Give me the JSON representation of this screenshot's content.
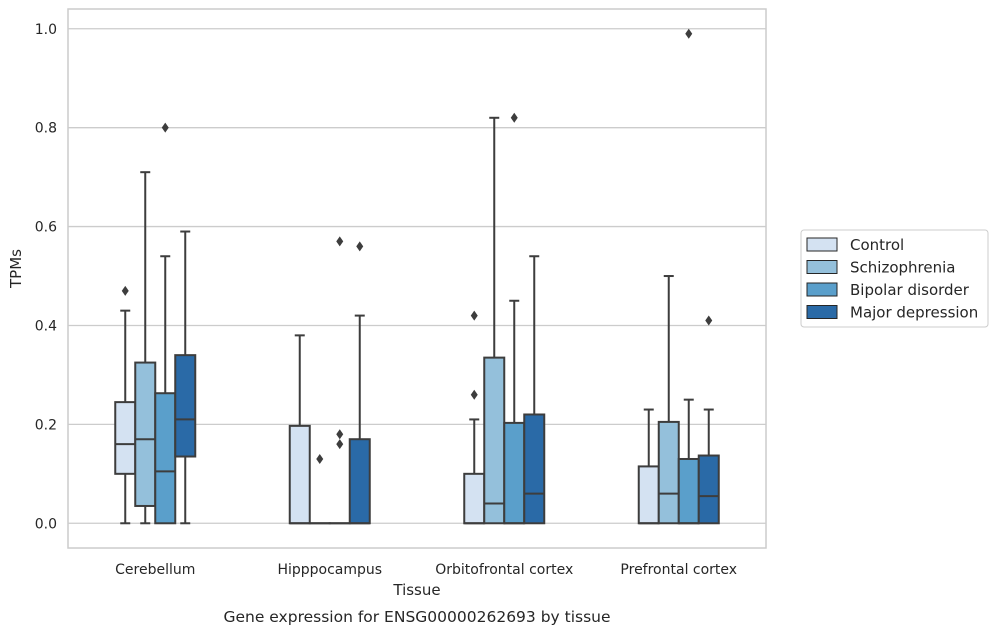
{
  "chart_data": {
    "type": "box",
    "xlabel": "Tissue",
    "ylabel": "TPMs",
    "caption": "Gene expression for ENSG00000262693 by tissue",
    "ylim": [
      -0.05,
      1.04
    ],
    "yticks": [
      0.0,
      0.2,
      0.4,
      0.6,
      0.8,
      1.0
    ],
    "ytick_labels": [
      "0.0",
      "0.2",
      "0.4",
      "0.6",
      "0.8",
      "1.0"
    ],
    "grid": "horizontal",
    "legend_position": "right",
    "categories": [
      "Cerebellum",
      "Hipppocampus",
      "Orbitofrontal cortex",
      "Prefrontal cortex"
    ],
    "series": [
      {
        "name": "Control",
        "color": "#d4e2f2",
        "boxes": [
          {
            "whisker_low": 0.0,
            "q1": 0.1,
            "median": 0.16,
            "q3": 0.245,
            "whisker_high": 0.43,
            "outliers": [
              0.47
            ]
          },
          {
            "whisker_low": 0.0,
            "q1": 0.0,
            "median": 0.0,
            "q3": 0.197,
            "whisker_high": 0.38,
            "outliers": []
          },
          {
            "whisker_low": 0.0,
            "q1": 0.0,
            "median": 0.0,
            "q3": 0.1,
            "whisker_high": 0.21,
            "outliers": [
              0.26,
              0.42
            ]
          },
          {
            "whisker_low": 0.0,
            "q1": 0.0,
            "median": 0.0,
            "q3": 0.115,
            "whisker_high": 0.23,
            "outliers": []
          }
        ]
      },
      {
        "name": "Schizophrenia",
        "color": "#94c0db",
        "boxes": [
          {
            "whisker_low": 0.0,
            "q1": 0.035,
            "median": 0.17,
            "q3": 0.325,
            "whisker_high": 0.71,
            "outliers": []
          },
          {
            "whisker_low": 0.0,
            "q1": 0.0,
            "median": 0.0,
            "q3": 0.0,
            "whisker_high": 0.0,
            "outliers": [
              0.13
            ]
          },
          {
            "whisker_low": 0.0,
            "q1": 0.0,
            "median": 0.04,
            "q3": 0.335,
            "whisker_high": 0.82,
            "outliers": []
          },
          {
            "whisker_low": 0.0,
            "q1": 0.0,
            "median": 0.06,
            "q3": 0.205,
            "whisker_high": 0.5,
            "outliers": []
          }
        ]
      },
      {
        "name": "Bipolar disorder",
        "color": "#5a9fcb",
        "boxes": [
          {
            "whisker_low": 0.0,
            "q1": 0.0,
            "median": 0.105,
            "q3": 0.263,
            "whisker_high": 0.54,
            "outliers": [
              0.8
            ]
          },
          {
            "whisker_low": 0.0,
            "q1": 0.0,
            "median": 0.0,
            "q3": 0.0,
            "whisker_high": 0.0,
            "outliers": [
              0.16,
              0.18,
              0.57
            ]
          },
          {
            "whisker_low": 0.0,
            "q1": 0.0,
            "median": 0.0,
            "q3": 0.203,
            "whisker_high": 0.45,
            "outliers": [
              0.82
            ]
          },
          {
            "whisker_low": 0.0,
            "q1": 0.0,
            "median": 0.0,
            "q3": 0.13,
            "whisker_high": 0.25,
            "outliers": [
              0.99
            ]
          }
        ]
      },
      {
        "name": "Major depression",
        "color": "#2a6aa7",
        "boxes": [
          {
            "whisker_low": 0.0,
            "q1": 0.135,
            "median": 0.21,
            "q3": 0.34,
            "whisker_high": 0.59,
            "outliers": []
          },
          {
            "whisker_low": 0.0,
            "q1": 0.0,
            "median": 0.0,
            "q3": 0.17,
            "whisker_high": 0.42,
            "outliers": [
              0.56
            ]
          },
          {
            "whisker_low": 0.0,
            "q1": 0.0,
            "median": 0.06,
            "q3": 0.22,
            "whisker_high": 0.54,
            "outliers": []
          },
          {
            "whisker_low": 0.0,
            "q1": 0.0,
            "median": 0.055,
            "q3": 0.137,
            "whisker_high": 0.23,
            "outliers": [
              0.41
            ]
          }
        ]
      }
    ]
  }
}
